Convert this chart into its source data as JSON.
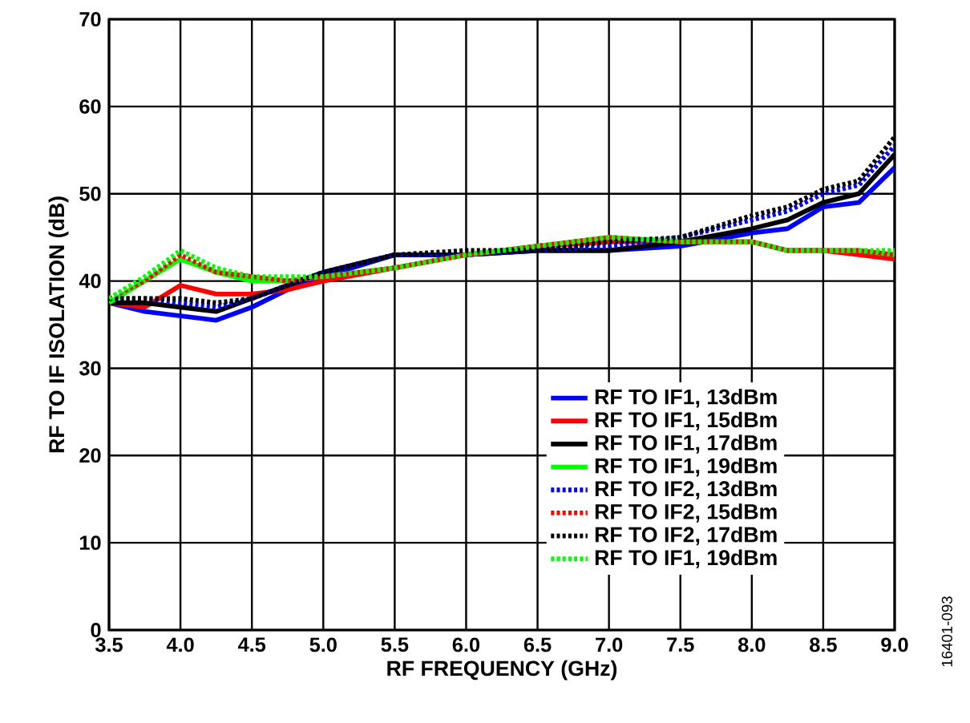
{
  "chart_data": {
    "type": "line",
    "xlabel": "RF FREQUENCY (GHz)",
    "ylabel": "RF TO IF ISOLATION (dB)",
    "x": [
      3.5,
      3.75,
      4.0,
      4.25,
      4.5,
      4.75,
      5.0,
      5.5,
      6.0,
      6.5,
      7.0,
      7.5,
      8.0,
      8.25,
      8.5,
      8.75,
      9.0
    ],
    "series": [
      {
        "name": "RF TO IF1, 13dBm",
        "color": "#0000ff",
        "line_style": "solid",
        "values": [
          37.5,
          36.5,
          36,
          35.5,
          37,
          39,
          40.5,
          43,
          43,
          43.5,
          43.5,
          44,
          45.5,
          46,
          48.5,
          49,
          53
        ]
      },
      {
        "name": "RF TO IF1, 15dBm",
        "color": "#ff0000",
        "line_style": "solid",
        "values": [
          37.5,
          37,
          39.5,
          38.5,
          38.5,
          39,
          40,
          41.5,
          43,
          44,
          44.5,
          44.5,
          44.5,
          43.5,
          43.5,
          43,
          42.5
        ]
      },
      {
        "name": "RF TO IF1, 17dBm",
        "color": "#000000",
        "line_style": "solid",
        "values": [
          37.5,
          37.5,
          37,
          36.5,
          38,
          39.5,
          41,
          43,
          43,
          43.5,
          43.5,
          44.5,
          46,
          47,
          49,
          50,
          54.5
        ]
      },
      {
        "name": "RF TO IF1, 19dBm",
        "color": "#00ff00",
        "line_style": "solid",
        "values": [
          37.5,
          40,
          42.5,
          41,
          40,
          40,
          40.5,
          41.5,
          43,
          44,
          45,
          44.5,
          44.5,
          43.5,
          43.5,
          43.5,
          43
        ]
      },
      {
        "name": "RF TO IF2, 13dBm",
        "color": "#0000ff",
        "line_style": "dotted",
        "values": [
          38,
          38,
          37.5,
          37,
          38,
          39.5,
          41,
          43,
          43,
          43.5,
          44,
          45,
          47,
          48,
          50,
          51,
          55.5
        ]
      },
      {
        "name": "RF TO IF2, 15dBm",
        "color": "#ff0000",
        "line_style": "dotted",
        "values": [
          38,
          40,
          43,
          41,
          40.5,
          40,
          40.5,
          41.5,
          43,
          44,
          45,
          44.5,
          44.5,
          43.5,
          43.5,
          43.5,
          43
        ]
      },
      {
        "name": "RF TO IF2, 17dBm",
        "color": "#000000",
        "line_style": "dotted",
        "values": [
          38,
          38,
          38,
          37.5,
          38,
          39.5,
          41,
          43,
          43.5,
          43.5,
          44.5,
          45,
          47.5,
          48.5,
          50.5,
          51.5,
          56.5
        ]
      },
      {
        "name": "RF TO IF1, 19dBm",
        "color": "#00ff00",
        "line_style": "dotted",
        "values": [
          38,
          40.5,
          43.5,
          41.5,
          40.5,
          40.5,
          40.5,
          41.5,
          43,
          44,
          45,
          44.5,
          44.5,
          43.5,
          43.5,
          43.5,
          43.5
        ]
      }
    ],
    "xlim": [
      3.5,
      9.0
    ],
    "ylim": [
      0,
      70
    ],
    "xticks": [
      3.5,
      {
        "value": 4,
        "label": "4.0"
      },
      4.5,
      {
        "value": 5,
        "label": "5.0"
      },
      5.5,
      {
        "value": 6,
        "label": "6.0"
      },
      6.5,
      {
        "value": 7,
        "label": "7.0"
      },
      7.5,
      {
        "value": 8,
        "label": "8.0"
      },
      8.5,
      {
        "value": 9,
        "label": "9.0"
      }
    ],
    "yticks": [
      0,
      10,
      20,
      30,
      40,
      50,
      60,
      70
    ],
    "grid": true,
    "legend": "bottom right",
    "marker": "none",
    "annotations": [
      "16401-093"
    ]
  }
}
